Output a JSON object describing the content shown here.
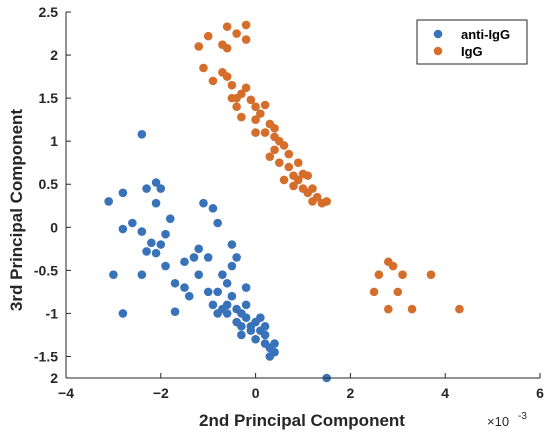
{
  "chart_data": {
    "type": "scatter",
    "title": "",
    "xlabel": "2nd Principal Component",
    "ylabel": "3rd Principal Component",
    "x_exponent_label": "×10",
    "x_exponent_power": "-3",
    "xlim": [
      -4,
      6
    ],
    "ylim": [
      -1.75,
      2.5
    ],
    "y_reversed_note": "y ticks top to bottom: 2.5, 2, 1.5, 1, 0.5, 0, -0.5, -1, -1.5, 2",
    "x_ticks": [
      -4,
      -2,
      0,
      2,
      4,
      6
    ],
    "x_tick_labels": [
      "−4",
      "−2",
      "0",
      "2",
      "4",
      "6"
    ],
    "y_ticks": [
      2.5,
      2,
      1.5,
      1,
      0.5,
      0,
      -0.5,
      -1,
      -1.5
    ],
    "y_tick_labels": [
      "2.5",
      "2",
      "1.5",
      "1",
      "0.5",
      "0",
      "-0.5",
      "-1",
      "-1.5"
    ],
    "y_bottom_tick_label": "2",
    "grid": false,
    "legend_position": "top-right",
    "series": [
      {
        "name": "anti-IgG",
        "color": "#3872B8",
        "points": [
          [
            -2.4,
            1.08
          ],
          [
            -2.1,
            0.52
          ],
          [
            -2.0,
            0.45
          ],
          [
            -2.3,
            0.45
          ],
          [
            -2.1,
            0.28
          ],
          [
            -1.8,
            0.1
          ],
          [
            -3.1,
            0.3
          ],
          [
            -2.8,
            0.4
          ],
          [
            -2.6,
            0.05
          ],
          [
            -2.8,
            -0.02
          ],
          [
            -2.4,
            -0.05
          ],
          [
            -2.3,
            -0.28
          ],
          [
            -2.1,
            -0.3
          ],
          [
            -2.0,
            -0.2
          ],
          [
            -2.2,
            -0.18
          ],
          [
            -1.9,
            -0.08
          ],
          [
            -3.0,
            -0.55
          ],
          [
            -2.4,
            -0.55
          ],
          [
            -1.9,
            -0.45
          ],
          [
            -1.7,
            -0.65
          ],
          [
            -1.5,
            -0.4
          ],
          [
            -1.3,
            -0.35
          ],
          [
            -1.1,
            0.28
          ],
          [
            -0.9,
            0.22
          ],
          [
            -0.8,
            0.05
          ],
          [
            -1.2,
            -0.25
          ],
          [
            -1.0,
            -0.35
          ],
          [
            -0.7,
            -0.55
          ],
          [
            -0.5,
            -0.45
          ],
          [
            -0.4,
            -0.35
          ],
          [
            -1.5,
            -0.7
          ],
          [
            -1.4,
            -0.8
          ],
          [
            -1.2,
            -0.55
          ],
          [
            -1.0,
            -0.75
          ],
          [
            -0.8,
            -0.75
          ],
          [
            -0.6,
            -0.65
          ],
          [
            -0.5,
            -0.8
          ],
          [
            -0.4,
            -0.95
          ],
          [
            -0.3,
            -1.0
          ],
          [
            -0.2,
            -0.9
          ],
          [
            -0.2,
            -0.7
          ],
          [
            -0.9,
            -0.9
          ],
          [
            -0.7,
            -0.95
          ],
          [
            -0.6,
            -1.0
          ],
          [
            -0.4,
            -1.1
          ],
          [
            -0.3,
            -1.15
          ],
          [
            -0.2,
            -1.05
          ],
          [
            -0.1,
            -1.15
          ],
          [
            0.0,
            -1.1
          ],
          [
            0.1,
            -1.2
          ],
          [
            0.2,
            -1.25
          ],
          [
            0.0,
            -1.3
          ],
          [
            0.2,
            -1.35
          ],
          [
            0.3,
            -1.4
          ],
          [
            0.3,
            -1.5
          ],
          [
            0.4,
            -1.45
          ],
          [
            0.4,
            -1.35
          ],
          [
            0.1,
            -1.05
          ],
          [
            -0.1,
            -1.2
          ],
          [
            -0.3,
            -1.25
          ],
          [
            -1.7,
            -0.98
          ],
          [
            -2.8,
            -1.0
          ],
          [
            -0.5,
            -0.2
          ],
          [
            1.5,
            -1.75
          ],
          [
            -0.6,
            -0.9
          ],
          [
            -0.8,
            -1.0
          ],
          [
            0.2,
            -1.15
          ]
        ]
      },
      {
        "name": "IgG",
        "color": "#D46E2A",
        "points": [
          [
            -1.0,
            2.22
          ],
          [
            -1.2,
            2.1
          ],
          [
            -0.6,
            2.33
          ],
          [
            -0.4,
            2.25
          ],
          [
            -0.6,
            2.08
          ],
          [
            -0.2,
            2.35
          ],
          [
            -0.2,
            2.18
          ],
          [
            -0.7,
            2.12
          ],
          [
            -1.1,
            1.85
          ],
          [
            -0.9,
            1.7
          ],
          [
            -0.7,
            1.8
          ],
          [
            -0.5,
            1.65
          ],
          [
            -0.3,
            1.55
          ],
          [
            -0.2,
            1.62
          ],
          [
            -0.1,
            1.48
          ],
          [
            0.0,
            1.4
          ],
          [
            0.1,
            1.32
          ],
          [
            0.2,
            1.42
          ],
          [
            -0.5,
            1.5
          ],
          [
            -0.4,
            1.4
          ],
          [
            -0.3,
            1.28
          ],
          [
            0.0,
            1.25
          ],
          [
            0.3,
            1.2
          ],
          [
            0.2,
            1.1
          ],
          [
            0.4,
            1.05
          ],
          [
            0.5,
            1.0
          ],
          [
            0.6,
            0.95
          ],
          [
            0.4,
            0.9
          ],
          [
            0.3,
            0.82
          ],
          [
            0.5,
            0.75
          ],
          [
            0.7,
            0.7
          ],
          [
            0.8,
            0.6
          ],
          [
            0.9,
            0.55
          ],
          [
            1.0,
            0.45
          ],
          [
            1.1,
            0.4
          ],
          [
            1.2,
            0.3
          ],
          [
            1.3,
            0.35
          ],
          [
            1.4,
            0.28
          ],
          [
            1.5,
            0.3
          ],
          [
            1.2,
            0.45
          ],
          [
            1.0,
            0.62
          ],
          [
            0.8,
            0.48
          ],
          [
            0.6,
            0.55
          ],
          [
            0.9,
            0.75
          ],
          [
            0.7,
            0.85
          ],
          [
            1.1,
            0.6
          ],
          [
            0.4,
            1.15
          ],
          [
            -0.6,
            1.75
          ],
          [
            -0.4,
            1.5
          ],
          [
            0.0,
            1.1
          ],
          [
            2.8,
            -0.4
          ],
          [
            2.9,
            -0.45
          ],
          [
            3.1,
            -0.55
          ],
          [
            2.6,
            -0.55
          ],
          [
            2.5,
            -0.75
          ],
          [
            3.0,
            -0.75
          ],
          [
            3.7,
            -0.55
          ],
          [
            3.3,
            -0.95
          ],
          [
            2.8,
            -0.95
          ],
          [
            4.3,
            -0.95
          ]
        ]
      }
    ]
  }
}
